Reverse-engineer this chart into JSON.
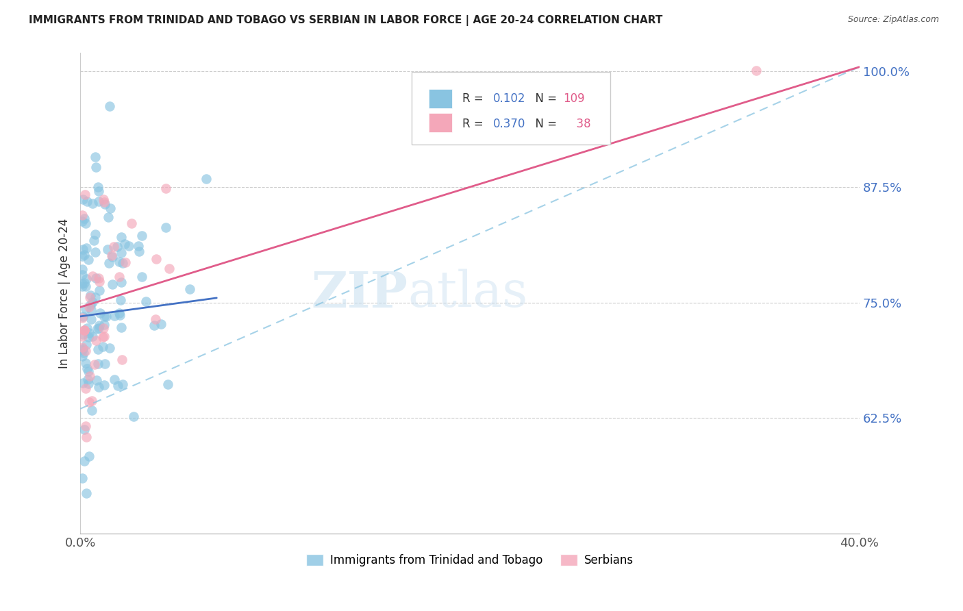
{
  "title": "IMMIGRANTS FROM TRINIDAD AND TOBAGO VS SERBIAN IN LABOR FORCE | AGE 20-24 CORRELATION CHART",
  "source": "Source: ZipAtlas.com",
  "ylabel": "In Labor Force | Age 20-24",
  "legend_label_1": "Immigrants from Trinidad and Tobago",
  "legend_label_2": "Serbians",
  "R1": 0.102,
  "N1": 109,
  "R2": 0.37,
  "N2": 38,
  "color1": "#89c4e1",
  "color2": "#f4a7b9",
  "line_color1": "#4472c4",
  "line_color2": "#e05c8a",
  "dash_color": "#89c4e1",
  "xlim": [
    0.0,
    0.4
  ],
  "ylim": [
    0.5,
    1.02
  ],
  "yticks": [
    0.625,
    0.75,
    0.875,
    1.0
  ],
  "ytick_labels": [
    "62.5%",
    "75.0%",
    "87.5%",
    "100.0%"
  ],
  "watermark_zip": "ZIP",
  "watermark_atlas": "atlas",
  "blue_line_x0": 0.0,
  "blue_line_y0": 0.735,
  "blue_line_x1": 0.07,
  "blue_line_y1": 0.755,
  "pink_line_x0": 0.0,
  "pink_line_y0": 0.745,
  "pink_line_x1": 0.4,
  "pink_line_y1": 1.005,
  "dash_line_x0": 0.0,
  "dash_line_y0": 0.635,
  "dash_line_x1": 0.4,
  "dash_line_y1": 1.005
}
